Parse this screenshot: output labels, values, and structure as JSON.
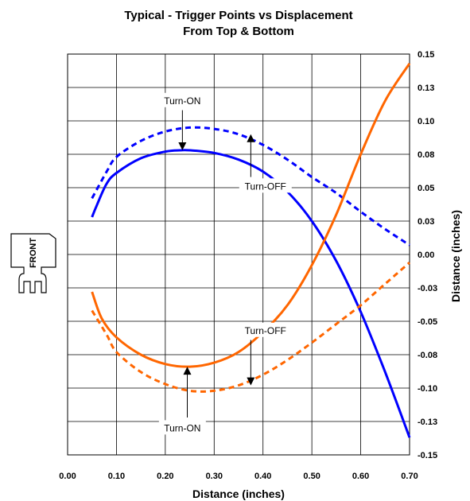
{
  "chart_data": {
    "type": "line",
    "title": "Typical - Trigger Points vs Displacement",
    "subtitle": "From Top & Bottom",
    "xlabel": "Distance (inches)",
    "ylabel": "Distance (inches)",
    "xlim": [
      0.0,
      0.7
    ],
    "ylim": [
      -0.15,
      0.15
    ],
    "x_ticks": [
      "0.00",
      "0.10",
      "0.20",
      "0.30",
      "0.40",
      "0.50",
      "0.60",
      "0.70"
    ],
    "y_ticks": [
      "0.15",
      "0.13",
      "0.10",
      "0.08",
      "0.05",
      "0.03",
      "0.00",
      "-0.03",
      "-0.05",
      "-0.08",
      "-0.10",
      "-0.13",
      "-0.15"
    ],
    "grid": true,
    "series": [
      {
        "color": "#0000ff",
        "dash": "solid",
        "x": [
          0.05,
          0.06,
          0.08,
          0.1,
          0.15,
          0.2,
          0.23,
          0.25,
          0.3,
          0.35,
          0.4,
          0.45,
          0.5,
          0.55,
          0.6,
          0.65,
          0.7
        ],
        "y": [
          0.028,
          0.037,
          0.053,
          0.061,
          0.072,
          0.077,
          0.078,
          0.078,
          0.076,
          0.071,
          0.062,
          0.047,
          0.025,
          -0.005,
          -0.043,
          -0.088,
          -0.137
        ]
      },
      {
        "color": "#0000ff",
        "dash": "dashed",
        "x": [
          0.05,
          0.08,
          0.1,
          0.15,
          0.2,
          0.25,
          0.3,
          0.35,
          0.4,
          0.45,
          0.5,
          0.55,
          0.6,
          0.65,
          0.7
        ],
        "y": [
          0.042,
          0.062,
          0.073,
          0.085,
          0.092,
          0.095,
          0.094,
          0.09,
          0.082,
          0.071,
          0.058,
          0.046,
          0.032,
          0.019,
          0.007
        ]
      },
      {
        "color": "#ff6600",
        "dash": "solid",
        "x": [
          0.05,
          0.07,
          0.1,
          0.15,
          0.2,
          0.25,
          0.3,
          0.35,
          0.4,
          0.45,
          0.5,
          0.55,
          0.6,
          0.65,
          0.7
        ],
        "y": [
          -0.028,
          -0.048,
          -0.062,
          -0.075,
          -0.082,
          -0.084,
          -0.081,
          -0.073,
          -0.058,
          -0.038,
          -0.008,
          0.03,
          0.075,
          0.115,
          0.143
        ]
      },
      {
        "color": "#ff6600",
        "dash": "dashed",
        "x": [
          0.05,
          0.08,
          0.1,
          0.15,
          0.2,
          0.25,
          0.3,
          0.35,
          0.4,
          0.45,
          0.5,
          0.55,
          0.6,
          0.65,
          0.7
        ],
        "y": [
          -0.042,
          -0.06,
          -0.073,
          -0.088,
          -0.097,
          -0.102,
          -0.102,
          -0.098,
          -0.09,
          -0.079,
          -0.066,
          -0.052,
          -0.038,
          -0.022,
          -0.006
        ]
      }
    ],
    "annotations": [
      {
        "text": "Turn-ON",
        "x": 0.235,
        "y": 0.115
      },
      {
        "text": "Turn-OFF",
        "x": 0.405,
        "y": 0.051
      },
      {
        "text": "Turn-OFF",
        "x": 0.405,
        "y": -0.057
      },
      {
        "text": "Turn-ON",
        "x": 0.235,
        "y": -0.13
      }
    ],
    "arrows": [
      {
        "x": 0.235,
        "y_from": 0.108,
        "y_to": 0.078
      },
      {
        "x": 0.375,
        "y_from": 0.058,
        "y_to": 0.09
      },
      {
        "x": 0.245,
        "y_from": -0.122,
        "y_to": -0.084
      },
      {
        "x": 0.375,
        "y_from": -0.064,
        "y_to": -0.098
      }
    ],
    "side_label": "FRONT"
  }
}
